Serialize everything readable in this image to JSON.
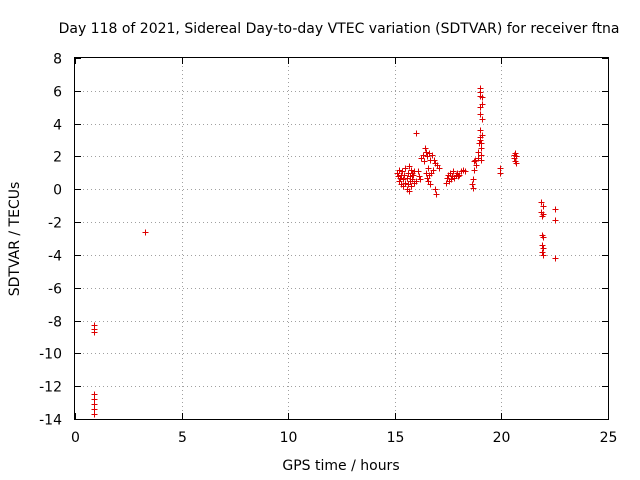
{
  "chart_data": {
    "type": "scatter",
    "title": "Day 118 of 2021, Sidereal Day-to-day VTEC variation (SDTVAR) for receiver ftna",
    "xlabel": "GPS time / hours",
    "ylabel": "SDTVAR / TECUs",
    "xlim": [
      0,
      25
    ],
    "ylim": [
      -14,
      8
    ],
    "xticks": [
      0,
      5,
      10,
      15,
      20,
      25
    ],
    "yticks": [
      -14,
      -12,
      -10,
      -8,
      -6,
      -4,
      -2,
      0,
      2,
      4,
      6,
      8
    ],
    "grid": true,
    "marker": "+",
    "color": "#dd0000",
    "series": [
      {
        "name": "SDTVAR",
        "points": [
          [
            0.9,
            -8.3
          ],
          [
            0.9,
            -8.5
          ],
          [
            0.9,
            -8.7
          ],
          [
            0.9,
            -12.5
          ],
          [
            0.9,
            -12.8
          ],
          [
            0.9,
            -13.1
          ],
          [
            0.9,
            -13.4
          ],
          [
            0.9,
            -13.7
          ],
          [
            3.3,
            -2.6
          ],
          [
            15.1,
            1.0
          ],
          [
            15.15,
            0.8
          ],
          [
            15.2,
            0.5
          ],
          [
            15.2,
            1.2
          ],
          [
            15.25,
            0.7
          ],
          [
            15.3,
            0.3
          ],
          [
            15.3,
            0.9
          ],
          [
            15.35,
            1.1
          ],
          [
            15.4,
            0.6
          ],
          [
            15.4,
            0.2
          ],
          [
            15.45,
            0.9
          ],
          [
            15.5,
            1.3
          ],
          [
            15.5,
            0.4
          ],
          [
            15.55,
            0.0
          ],
          [
            15.55,
            0.7
          ],
          [
            15.6,
            1.0
          ],
          [
            15.6,
            0.3
          ],
          [
            15.65,
            1.4
          ],
          [
            15.65,
            -0.1
          ],
          [
            15.7,
            0.8
          ],
          [
            15.7,
            0.5
          ],
          [
            15.75,
            1.2
          ],
          [
            15.75,
            0.2
          ],
          [
            15.8,
            1.0
          ],
          [
            15.8,
            0.6
          ],
          [
            15.85,
            0.9
          ],
          [
            15.9,
            0.4
          ],
          [
            15.9,
            1.1
          ],
          [
            16.0,
            3.4
          ],
          [
            16.0,
            0.5
          ],
          [
            16.1,
            1.1
          ],
          [
            16.15,
            0.8
          ],
          [
            16.2,
            0.6
          ],
          [
            16.25,
            1.9
          ],
          [
            16.3,
            2.1
          ],
          [
            16.35,
            1.7
          ],
          [
            16.4,
            2.5
          ],
          [
            16.45,
            2.3
          ],
          [
            16.45,
            1.0
          ],
          [
            16.5,
            0.7
          ],
          [
            16.5,
            2.0
          ],
          [
            16.55,
            1.3
          ],
          [
            16.55,
            0.5
          ],
          [
            16.6,
            2.2
          ],
          [
            16.6,
            0.9
          ],
          [
            16.65,
            1.8
          ],
          [
            16.65,
            0.3
          ],
          [
            16.7,
            1.0
          ],
          [
            16.75,
            2.1
          ],
          [
            16.8,
            1.2
          ],
          [
            16.85,
            1.8
          ],
          [
            16.9,
            1.6
          ],
          [
            16.9,
            0.0
          ],
          [
            16.95,
            -0.3
          ],
          [
            17.0,
            1.5
          ],
          [
            17.05,
            1.3
          ],
          [
            17.4,
            0.4
          ],
          [
            17.45,
            0.7
          ],
          [
            17.5,
            0.9
          ],
          [
            17.55,
            0.5
          ],
          [
            17.6,
            1.0
          ],
          [
            17.65,
            0.6
          ],
          [
            17.7,
            0.8
          ],
          [
            17.75,
            1.1
          ],
          [
            17.8,
            0.7
          ],
          [
            17.85,
            0.9
          ],
          [
            17.9,
            1.0
          ],
          [
            17.95,
            0.8
          ],
          [
            18.0,
            0.9
          ],
          [
            18.1,
            1.1
          ],
          [
            18.2,
            1.2
          ],
          [
            18.3,
            1.1
          ],
          [
            18.6,
            0.3
          ],
          [
            18.65,
            0.6
          ],
          [
            18.65,
            0.1
          ],
          [
            18.7,
            1.7
          ],
          [
            18.7,
            1.2
          ],
          [
            18.75,
            1.8
          ],
          [
            18.8,
            1.5
          ],
          [
            18.9,
            1.9
          ],
          [
            18.9,
            2.3
          ],
          [
            18.95,
            2.8
          ],
          [
            19.0,
            6.2
          ],
          [
            19.0,
            5.9
          ],
          [
            19.0,
            5.7
          ],
          [
            19.0,
            5.0
          ],
          [
            19.0,
            4.6
          ],
          [
            19.0,
            3.6
          ],
          [
            19.0,
            3.2
          ],
          [
            19.0,
            3.0
          ],
          [
            19.05,
            2.8
          ],
          [
            19.05,
            2.5
          ],
          [
            19.05,
            2.1
          ],
          [
            19.05,
            1.8
          ],
          [
            19.1,
            5.6
          ],
          [
            19.1,
            5.2
          ],
          [
            19.1,
            4.3
          ],
          [
            19.1,
            3.3
          ],
          [
            19.95,
            1.3
          ],
          [
            19.95,
            1.0
          ],
          [
            20.6,
            2.1
          ],
          [
            20.6,
            1.9
          ],
          [
            20.65,
            1.7
          ],
          [
            20.65,
            2.2
          ],
          [
            20.7,
            2.0
          ],
          [
            20.7,
            1.6
          ],
          [
            21.85,
            -0.8
          ],
          [
            21.85,
            -1.4
          ],
          [
            21.9,
            -1.6
          ],
          [
            21.9,
            -2.8
          ],
          [
            21.9,
            -3.4
          ],
          [
            21.9,
            -3.8
          ],
          [
            21.95,
            -1.0
          ],
          [
            21.95,
            -1.5
          ],
          [
            21.95,
            -2.9
          ],
          [
            21.95,
            -3.6
          ],
          [
            21.95,
            -4.0
          ],
          [
            22.5,
            -1.2
          ],
          [
            22.5,
            -1.9
          ],
          [
            22.5,
            -4.2
          ]
        ]
      }
    ]
  }
}
